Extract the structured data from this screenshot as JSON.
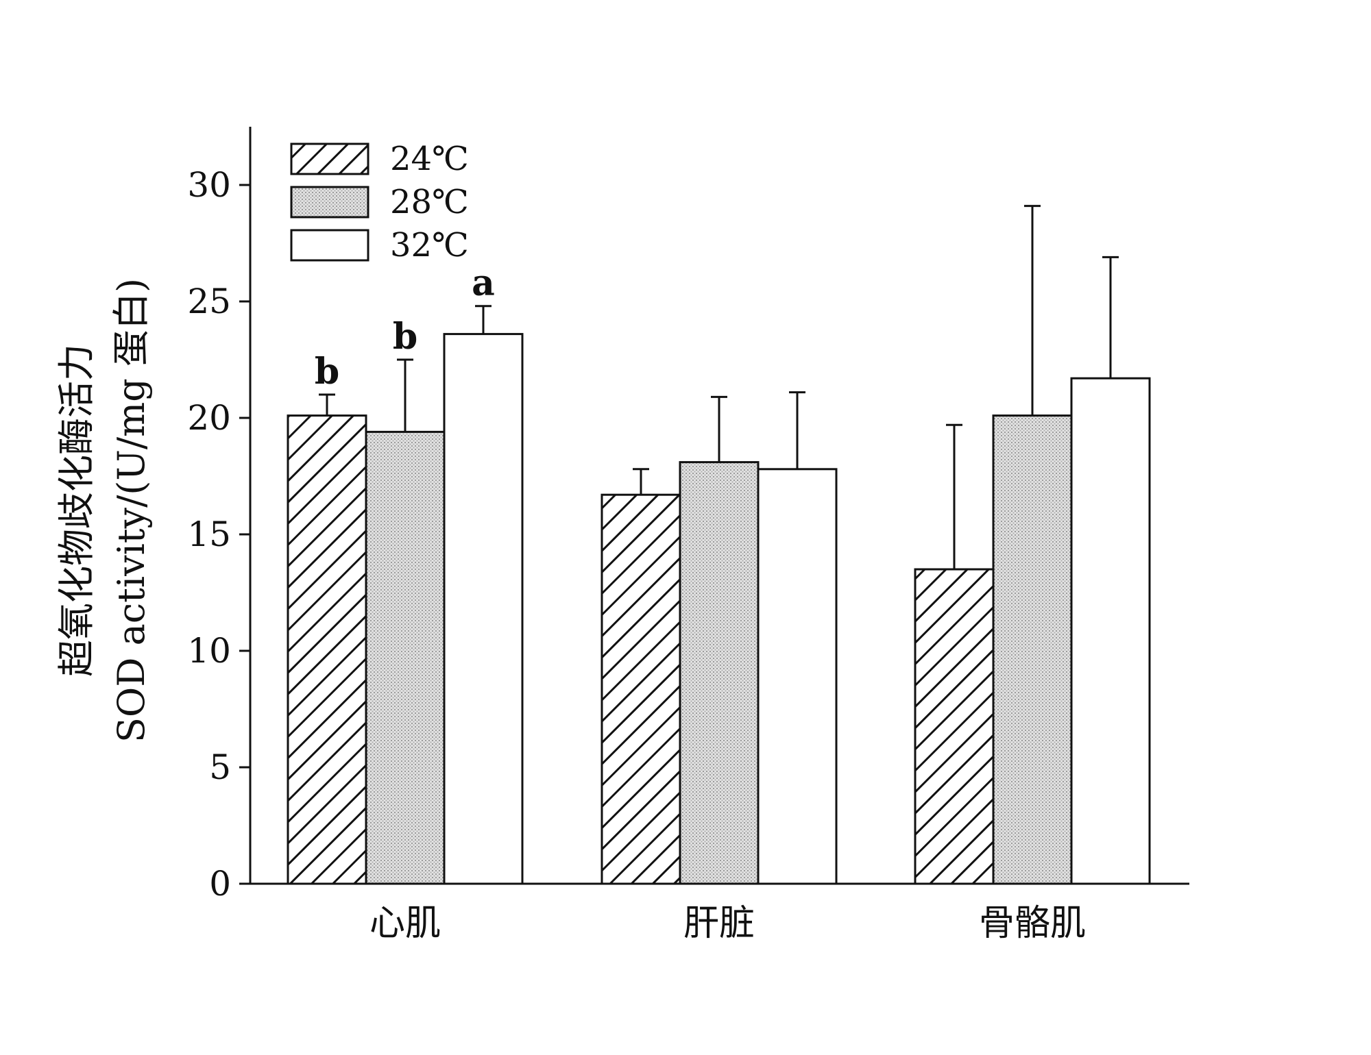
{
  "chart_data": {
    "type": "bar",
    "categories": [
      "心肌",
      "肝脏",
      "骨骼肌"
    ],
    "series": [
      {
        "name": "24℃",
        "pattern": "hatch",
        "values": [
          20.1,
          16.7,
          13.5
        ],
        "errors": [
          0.9,
          1.1,
          6.2
        ]
      },
      {
        "name": "28℃",
        "pattern": "dotted",
        "values": [
          19.4,
          18.1,
          20.1
        ],
        "errors": [
          3.1,
          2.8,
          9.0
        ]
      },
      {
        "name": "32℃",
        "pattern": "white",
        "values": [
          23.6,
          17.8,
          21.7
        ],
        "errors": [
          1.2,
          3.3,
          5.2
        ]
      }
    ],
    "significance": [
      {
        "category": 0,
        "series": 0,
        "letter": "b"
      },
      {
        "category": 0,
        "series": 1,
        "letter": "b"
      },
      {
        "category": 0,
        "series": 2,
        "letter": "a"
      }
    ],
    "ylabel_line1": "超氧化物歧化酶活力",
    "ylabel_line2": "SOD activity/(U/mg 蛋白)",
    "xlabel": "",
    "title": "",
    "ylim": [
      0,
      32.5
    ],
    "yticks": [
      0,
      5,
      10,
      15,
      20,
      25,
      30
    ],
    "legend_position": "top-left",
    "grid": false,
    "colors": {
      "hatch_fill": "#ffffff",
      "dotted_fill": "#d9d9d9",
      "white_fill": "#ffffff",
      "stroke": "#111111"
    }
  }
}
